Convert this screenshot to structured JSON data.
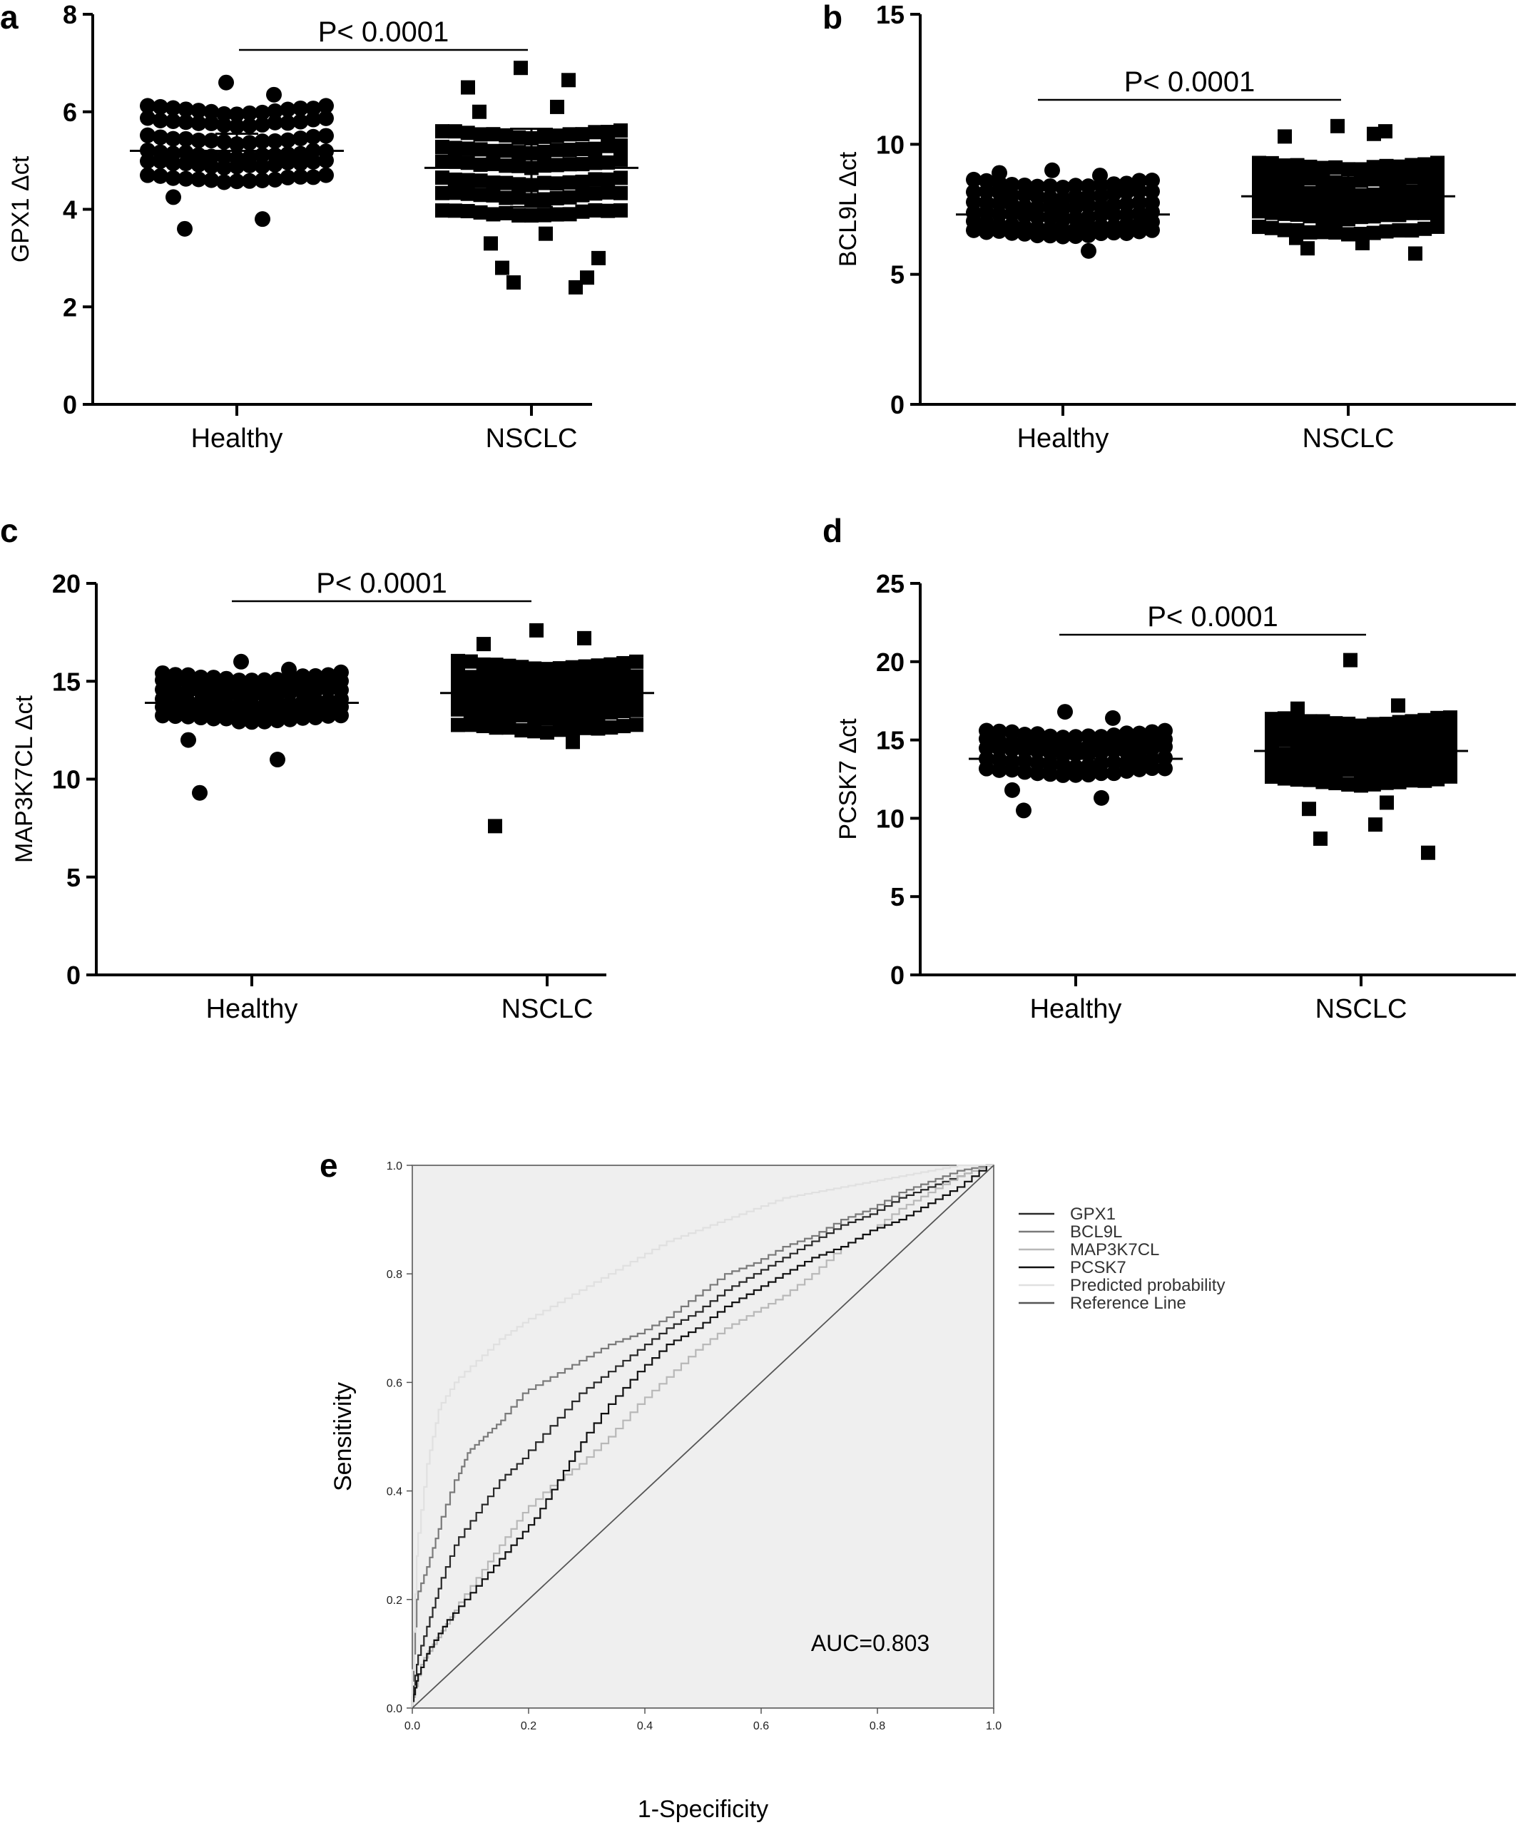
{
  "panels": [
    {
      "letter": "a",
      "ylabel": "GPX1  Δct",
      "ylim": [
        0,
        8
      ],
      "yticks": [
        0,
        2,
        4,
        6,
        8
      ],
      "categories": [
        "Healthy",
        "NSCLC"
      ],
      "marker": "circle",
      "pvalue": "P< 0.0001",
      "groups": [
        {
          "name": "Healthy",
          "center": 5.2,
          "mean": 5.2,
          "sd": 0.35,
          "bands": [
            4.7,
            5.0,
            5.2,
            5.5,
            5.85,
            6.1
          ],
          "extra": [
            6.6,
            6.35,
            4.25,
            3.8,
            3.6
          ]
        },
        {
          "name": "NSCLC",
          "center": 4.8,
          "mean": 4.85,
          "sd": 0.8,
          "bands": [
            4.0,
            4.35,
            4.65,
            5.0,
            5.3,
            5.6
          ],
          "extra": [
            6.9,
            6.65,
            6.5,
            6.1,
            6.0,
            3.5,
            3.3,
            3.0,
            2.8,
            2.6,
            2.5,
            2.4
          ]
        }
      ]
    },
    {
      "letter": "b",
      "ylabel": "BCL9L Δct",
      "ylim": [
        0,
        15
      ],
      "yticks": [
        0,
        5,
        10,
        15
      ],
      "categories": [
        "Healthy",
        "NSCLC"
      ],
      "marker": "circle",
      "pvalue": "P< 0.0001",
      "groups": [
        {
          "name": "Healthy",
          "center": 7.3,
          "mean": 7.3,
          "sd": 0.5,
          "bands": [
            6.7,
            7.0,
            7.4,
            7.8,
            8.2,
            8.6
          ],
          "extra": [
            9.0,
            8.8,
            8.9,
            5.9
          ]
        },
        {
          "name": "NSCLC",
          "center": 8.0,
          "mean": 8.0,
          "sd": 1.0,
          "bands": [
            6.8,
            7.4,
            7.8,
            8.3,
            8.8,
            9.3
          ],
          "extra": [
            10.7,
            10.5,
            10.3,
            10.4,
            6.4,
            6.2,
            6.0,
            5.8
          ]
        }
      ]
    },
    {
      "letter": "c",
      "ylabel": "MAP3K7CL Δct",
      "ylim": [
        0,
        20
      ],
      "yticks": [
        0,
        5,
        10,
        15,
        20
      ],
      "categories": [
        "Healthy",
        "NSCLC"
      ],
      "marker": "circle",
      "pvalue": "P< 0.0001",
      "groups": [
        {
          "name": "Healthy",
          "center": 13.9,
          "mean": 13.9,
          "sd": 0.7,
          "bands": [
            13.3,
            13.7,
            14.1,
            14.6,
            15.0,
            15.4
          ],
          "extra": [
            16.0,
            15.6,
            12.0,
            11.0,
            9.3
          ]
        },
        {
          "name": "NSCLC",
          "center": 14.3,
          "mean": 14.4,
          "sd": 1.0,
          "bands": [
            12.8,
            13.5,
            14.1,
            14.7,
            15.3,
            16.0
          ],
          "extra": [
            17.6,
            17.2,
            16.9,
            11.9,
            7.6
          ]
        }
      ]
    },
    {
      "letter": "d",
      "ylabel": "PCSK7 Δct",
      "ylim": [
        0,
        25
      ],
      "yticks": [
        0,
        5,
        10,
        15,
        20,
        25
      ],
      "categories": [
        "Healthy",
        "NSCLC"
      ],
      "marker": "circle",
      "pvalue": "P< 0.0001",
      "groups": [
        {
          "name": "Healthy",
          "center": 13.8,
          "mean": 13.8,
          "sd": 1.0,
          "bands": [
            13.2,
            13.8,
            14.5,
            15.0,
            15.6
          ],
          "extra": [
            16.8,
            16.4,
            11.8,
            11.3,
            10.5
          ]
        },
        {
          "name": "NSCLC",
          "center": 14.2,
          "mean": 14.3,
          "sd": 1.5,
          "bands": [
            12.6,
            13.4,
            14.2,
            15.0,
            15.8,
            16.4
          ],
          "extra": [
            20.1,
            17.2,
            17.0,
            11.0,
            10.6,
            9.6,
            8.7,
            7.8
          ]
        }
      ]
    }
  ],
  "chart_data": [
    {
      "type": "scatter",
      "panel": "a",
      "ylabel": "GPX1  Δct",
      "categories": [
        "Healthy",
        "NSCLC"
      ],
      "ylim": [
        0,
        8
      ],
      "annotation": "P< 0.0001",
      "mean": [
        5.2,
        4.85
      ]
    },
    {
      "type": "scatter",
      "panel": "b",
      "ylabel": "BCL9L Δct",
      "categories": [
        "Healthy",
        "NSCLC"
      ],
      "ylim": [
        0,
        15
      ],
      "annotation": "P< 0.0001",
      "mean": [
        7.3,
        8.0
      ]
    },
    {
      "type": "scatter",
      "panel": "c",
      "ylabel": "MAP3K7CL Δct",
      "categories": [
        "Healthy",
        "NSCLC"
      ],
      "ylim": [
        0,
        20
      ],
      "annotation": "P< 0.0001",
      "mean": [
        13.9,
        14.4
      ]
    },
    {
      "type": "scatter",
      "panel": "d",
      "ylabel": "PCSK7 Δct",
      "categories": [
        "Healthy",
        "NSCLC"
      ],
      "ylim": [
        0,
        25
      ],
      "annotation": "P< 0.0001",
      "mean": [
        13.8,
        14.3
      ]
    },
    {
      "type": "line",
      "panel": "e",
      "xlabel": "1-Specificity",
      "ylabel": "Sensitivity",
      "xlim": [
        0,
        1
      ],
      "ylim": [
        0,
        1
      ],
      "xticks": [
        "0.0",
        "0.2",
        "0.4",
        "0.6",
        "0.8",
        "1.0"
      ],
      "yticks": [
        "0.0",
        "0.2",
        "0.4",
        "0.6",
        "0.8",
        "1.0"
      ],
      "annotation": "AUC=0.803",
      "series": [
        {
          "name": "GPX1",
          "color": "#2a2a2a",
          "x": [
            0,
            0.01,
            0.03,
            0.05,
            0.08,
            0.12,
            0.16,
            0.2,
            0.25,
            0.3,
            0.35,
            0.4,
            0.45,
            0.5,
            0.55,
            0.6,
            0.65,
            0.7,
            0.75,
            0.8,
            0.85,
            0.9,
            0.95,
            1.0
          ],
          "y": [
            0,
            0.08,
            0.15,
            0.22,
            0.3,
            0.36,
            0.42,
            0.46,
            0.52,
            0.58,
            0.62,
            0.66,
            0.7,
            0.73,
            0.77,
            0.8,
            0.83,
            0.86,
            0.89,
            0.91,
            0.94,
            0.96,
            0.98,
            1.0
          ]
        },
        {
          "name": "BCL9L",
          "color": "#7a7a7a",
          "x": [
            0,
            0.01,
            0.03,
            0.05,
            0.08,
            0.1,
            0.13,
            0.16,
            0.2,
            0.25,
            0.3,
            0.35,
            0.4,
            0.45,
            0.5,
            0.55,
            0.6,
            0.65,
            0.7,
            0.75,
            0.8,
            0.85,
            0.9,
            0.95,
            1.0
          ],
          "y": [
            0,
            0.2,
            0.26,
            0.33,
            0.42,
            0.47,
            0.5,
            0.53,
            0.58,
            0.61,
            0.64,
            0.67,
            0.69,
            0.72,
            0.76,
            0.8,
            0.82,
            0.85,
            0.87,
            0.9,
            0.92,
            0.95,
            0.97,
            0.99,
            1.0
          ]
        },
        {
          "name": "MAP3K7CL",
          "color": "#b8b8b8",
          "x": [
            0,
            0.02,
            0.05,
            0.08,
            0.12,
            0.16,
            0.2,
            0.25,
            0.3,
            0.35,
            0.4,
            0.45,
            0.5,
            0.55,
            0.6,
            0.65,
            0.7,
            0.75,
            0.8,
            0.85,
            0.9,
            0.95,
            1.0
          ],
          "y": [
            0,
            0.08,
            0.13,
            0.18,
            0.24,
            0.3,
            0.36,
            0.41,
            0.45,
            0.5,
            0.56,
            0.61,
            0.66,
            0.7,
            0.73,
            0.76,
            0.8,
            0.85,
            0.88,
            0.92,
            0.95,
            0.98,
            1.0
          ]
        },
        {
          "name": "PCSK7",
          "color": "#111111",
          "x": [
            0,
            0.01,
            0.03,
            0.06,
            0.1,
            0.14,
            0.18,
            0.22,
            0.26,
            0.3,
            0.35,
            0.4,
            0.45,
            0.5,
            0.55,
            0.6,
            0.65,
            0.7,
            0.75,
            0.8,
            0.85,
            0.9,
            0.95,
            1.0
          ],
          "y": [
            0,
            0.05,
            0.1,
            0.15,
            0.2,
            0.25,
            0.3,
            0.35,
            0.42,
            0.49,
            0.56,
            0.62,
            0.67,
            0.7,
            0.74,
            0.77,
            0.8,
            0.83,
            0.85,
            0.88,
            0.9,
            0.93,
            0.96,
            1.0
          ]
        },
        {
          "name": "Predicted probability",
          "color": "#e0e0e0",
          "x": [
            0,
            0.01,
            0.03,
            0.05,
            0.08,
            0.12,
            0.16,
            0.2,
            0.25,
            0.3,
            0.35,
            0.4,
            0.45,
            0.5,
            0.55,
            0.6,
            0.65,
            0.7,
            0.75,
            0.8,
            0.85,
            0.9,
            0.95,
            1.0
          ],
          "y": [
            0,
            0.28,
            0.45,
            0.55,
            0.6,
            0.64,
            0.68,
            0.71,
            0.74,
            0.77,
            0.8,
            0.83,
            0.86,
            0.88,
            0.9,
            0.92,
            0.94,
            0.95,
            0.96,
            0.97,
            0.98,
            0.99,
            1.0,
            1.0
          ]
        },
        {
          "name": "Reference Line",
          "color": "#555555",
          "x": [
            0,
            1
          ],
          "y": [
            0,
            1
          ]
        }
      ]
    }
  ]
}
